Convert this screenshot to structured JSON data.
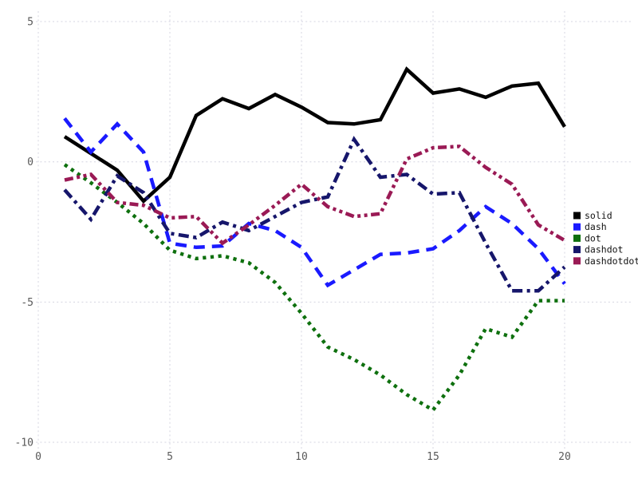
{
  "chart_data": {
    "type": "line",
    "title": "",
    "xlabel": "",
    "ylabel": "",
    "xlim": [
      0,
      20
    ],
    "ylim": [
      -10,
      5
    ],
    "x_ticks": [
      0,
      5,
      10,
      15,
      20
    ],
    "y_ticks": [
      5,
      0,
      -5,
      -10
    ],
    "grid": true,
    "legend_position": "right",
    "x": [
      1,
      2,
      3,
      4,
      5,
      6,
      7,
      8,
      9,
      10,
      11,
      12,
      13,
      14,
      15,
      16,
      17,
      18,
      19,
      20
    ],
    "series": [
      {
        "name": "solid",
        "color": "#000000",
        "line_style": "solid",
        "values": [
          0.9,
          0.3,
          -0.3,
          -1.4,
          -0.55,
          1.65,
          2.25,
          1.9,
          2.4,
          1.95,
          1.4,
          1.35,
          1.5,
          3.3,
          2.45,
          2.6,
          2.3,
          2.7,
          2.8,
          1.25
        ]
      },
      {
        "name": "dash",
        "color": "#1a1aff",
        "line_style": "dash",
        "values": [
          1.55,
          0.35,
          1.35,
          0.35,
          -2.9,
          -3.05,
          -3.0,
          -2.2,
          -2.45,
          -3.05,
          -4.4,
          -3.85,
          -3.3,
          -3.25,
          -3.1,
          -2.45,
          -1.6,
          -2.2,
          -3.1,
          -4.35
        ]
      },
      {
        "name": "dot",
        "color": "#0e700e",
        "line_style": "dot",
        "values": [
          -0.1,
          -0.75,
          -1.45,
          -2.2,
          -3.15,
          -3.45,
          -3.35,
          -3.6,
          -4.3,
          -5.4,
          -6.6,
          -7.05,
          -7.6,
          -8.3,
          -8.85,
          -7.6,
          -5.95,
          -6.25,
          -4.95,
          -4.95
        ]
      },
      {
        "name": "dashdot",
        "color": "#16166b",
        "line_style": "dashdot",
        "values": [
          -1.0,
          -2.05,
          -0.5,
          -1.1,
          -2.55,
          -2.7,
          -2.15,
          -2.45,
          -1.95,
          -1.45,
          -1.25,
          0.8,
          -0.55,
          -0.45,
          -1.15,
          -1.1,
          -2.9,
          -4.6,
          -4.6,
          -3.75
        ]
      },
      {
        "name": "dashdotdot",
        "color": "#9a1a55",
        "line_style": "dashdotdot",
        "values": [
          -0.65,
          -0.45,
          -1.45,
          -1.55,
          -2.0,
          -1.95,
          -2.9,
          -2.25,
          -1.55,
          -0.8,
          -1.6,
          -1.95,
          -1.85,
          0.1,
          0.5,
          0.55,
          -0.2,
          -0.8,
          -2.25,
          -2.8
        ]
      }
    ]
  },
  "grid_color": "#d4d4e0"
}
